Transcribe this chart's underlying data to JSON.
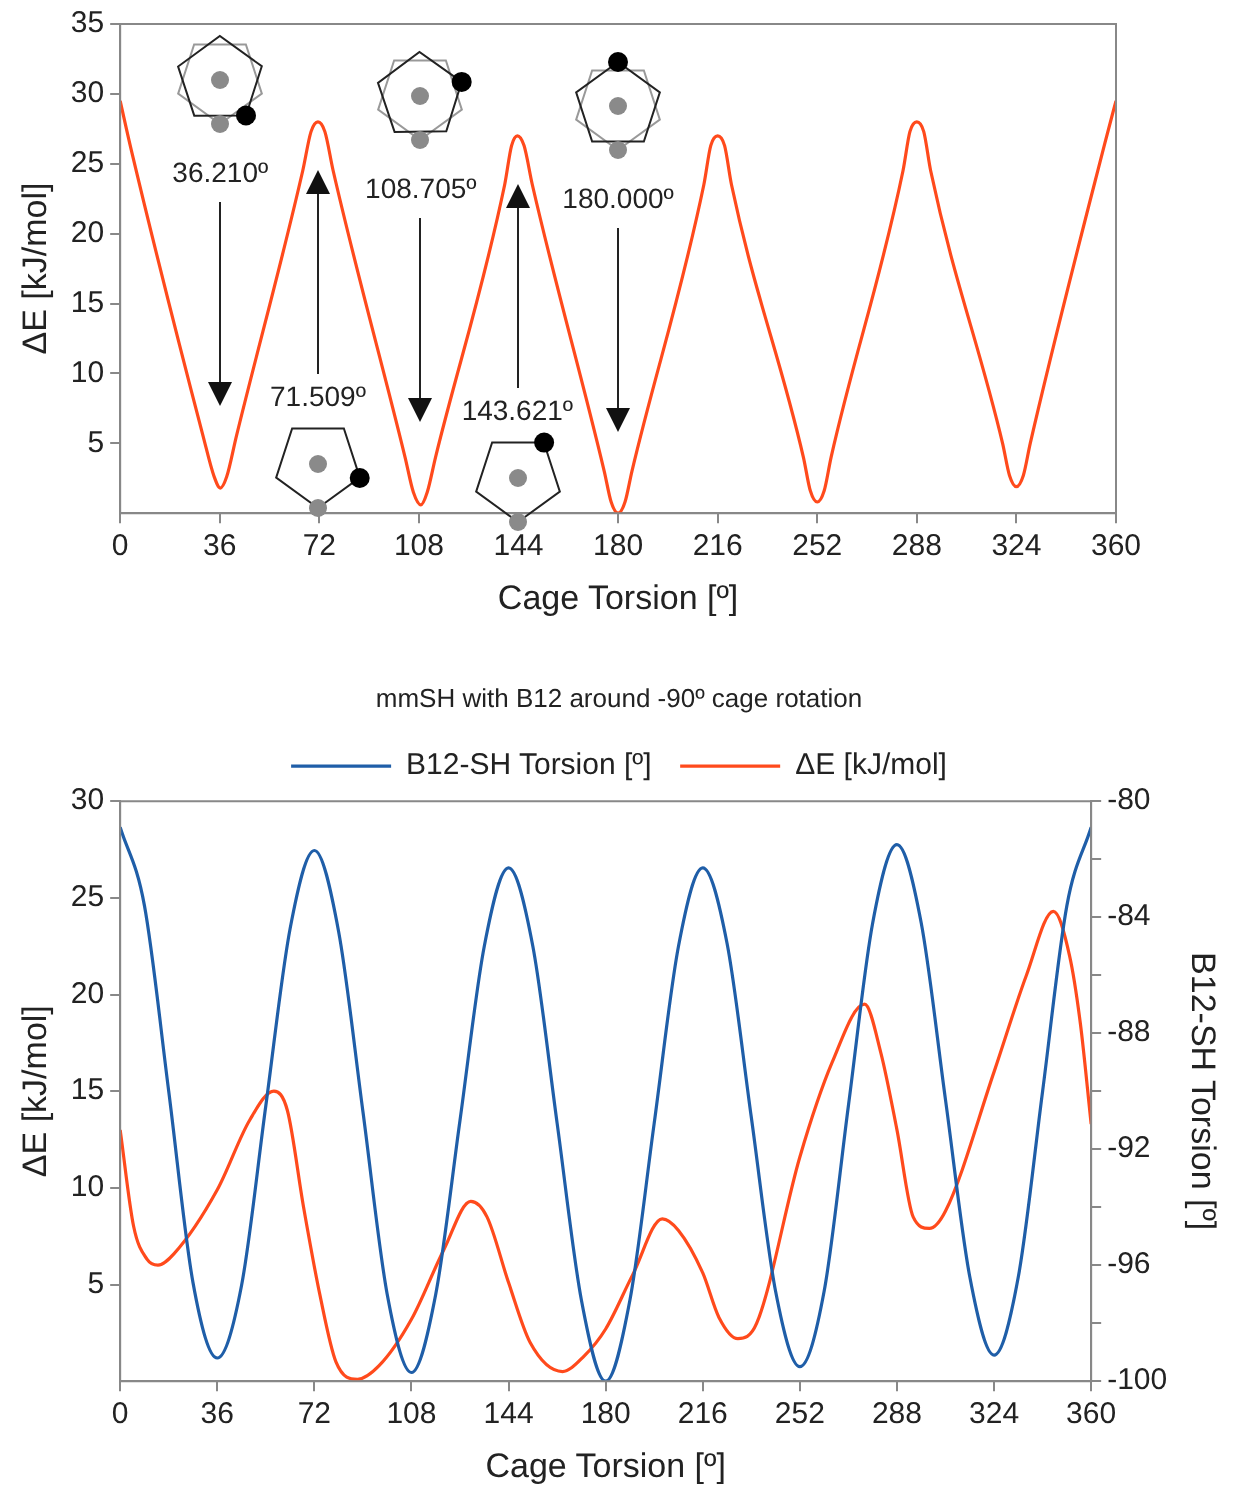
{
  "chart_data": [
    {
      "type": "line",
      "xlabel": "Cage Torsion [º]",
      "ylabel": "ΔE [kJ/mol]",
      "color": "#ff4a1c",
      "marker": "none",
      "x": [
        0,
        4,
        30,
        34,
        36.2,
        38.5,
        42,
        66,
        69,
        71.5,
        74,
        77,
        103,
        106,
        108.7,
        111,
        114,
        139,
        141.5,
        143.6,
        146,
        149,
        175,
        177.5,
        180,
        182.5,
        185,
        211,
        213.5,
        216,
        218.5,
        221,
        247,
        249.5,
        252,
        254.5,
        257,
        283,
        285.5,
        288,
        290.5,
        293,
        319,
        321.5,
        324,
        326.5,
        329,
        356,
        360
      ],
      "values": [
        29.5,
        26,
        5.5,
        2.6,
        1.8,
        2.6,
        5.5,
        24.5,
        27.3,
        28,
        27.3,
        24.5,
        4,
        1.5,
        0.6,
        1.5,
        4,
        23.5,
        26.3,
        27,
        26.3,
        23.5,
        3,
        0.8,
        0,
        0.8,
        3,
        23.5,
        26.3,
        27,
        26.3,
        23.5,
        4,
        1.6,
        0.8,
        1.6,
        4,
        24.5,
        27.3,
        28,
        27.3,
        24.5,
        5,
        2.7,
        1.9,
        2.7,
        5,
        26.5,
        29.5
      ],
      "xlim": [
        0,
        360
      ],
      "xticks": [
        0,
        36,
        72,
        108,
        144,
        180,
        216,
        252,
        288,
        324,
        360
      ],
      "ylim": [
        0,
        35
      ],
      "yticks": [
        5,
        10,
        15,
        20,
        25,
        30,
        35
      ],
      "annotations": [
        "36.210º",
        "71.509º",
        "108.705º",
        "143.621º",
        "180.000º"
      ]
    },
    {
      "type": "line",
      "title": "mmSH with B12 around -90º cage rotation",
      "xlabel": "Cage Torsion [º]",
      "ylabel": "ΔE [kJ/mol]",
      "y2label": "B12-SH Torsion [º]",
      "legend": "top",
      "marker": "none",
      "series": [
        {
          "name": "B12-SH Torsion [º]",
          "color": "#1f5ea8",
          "axis": "y2",
          "x": [
            0,
            9,
            18,
            27,
            36,
            45,
            54,
            63,
            72,
            81,
            90,
            99,
            108,
            117,
            126,
            135,
            144,
            153,
            162,
            171,
            180,
            189,
            198,
            207,
            216,
            225,
            234,
            243,
            252,
            261,
            270,
            279,
            288,
            297,
            306,
            315,
            324,
            333,
            342,
            351,
            360
          ],
          "values": [
            -80.9,
            -83.6,
            -90.0,
            -96.6,
            -99.2,
            -96.7,
            -90.5,
            -84.4,
            -81.7,
            -84.5,
            -90.7,
            -97.0,
            -99.7,
            -97.0,
            -91.0,
            -85.0,
            -82.3,
            -85.0,
            -91.1,
            -97.2,
            -100,
            -97.2,
            -91.1,
            -85.0,
            -82.3,
            -84.9,
            -90.9,
            -96.9,
            -99.5,
            -96.9,
            -90.5,
            -84.2,
            -81.5,
            -84.2,
            -90.3,
            -96.4,
            -99.1,
            -96.4,
            -90.0,
            -83.6,
            -80.9
          ]
        },
        {
          "name": "ΔE [kJ/mol]",
          "color": "#ff4a1c",
          "x": [
            0,
            5,
            10,
            14,
            20,
            36,
            48,
            57,
            62,
            68,
            74,
            80,
            88,
            96,
            108,
            120,
            130,
            136,
            144,
            152,
            164,
            172,
            180,
            190,
            201,
            207,
            216,
            222,
            229,
            236,
            252,
            264,
            276,
            282,
            288,
            294,
            300,
            306,
            324,
            336,
            346,
            352,
            356,
            360
          ],
          "values": [
            13,
            8,
            6.3,
            6,
            6.6,
            9.9,
            13.5,
            15,
            14,
            9,
            4.5,
            1,
            0.1,
            0.8,
            3.2,
            6.8,
            9.3,
            8.5,
            5.1,
            2,
            0.5,
            1.3,
            2.7,
            5.5,
            8.4,
            7.8,
            5.6,
            3.3,
            2.2,
            3,
            11.6,
            16.5,
            19.5,
            17,
            13,
            8.5,
            7.9,
            8.8,
            16,
            21,
            24.3,
            22,
            18.5,
            13.3
          ]
        }
      ],
      "xlim": [
        0,
        360
      ],
      "xticks": [
        0,
        36,
        72,
        108,
        144,
        180,
        216,
        252,
        288,
        324,
        360
      ],
      "ylim": [
        0,
        30
      ],
      "yticks": [
        5,
        10,
        15,
        20,
        25,
        30
      ],
      "y2lim": [
        -100,
        -80
      ],
      "y2ticks": [
        -100,
        {
          "value": -98,
          "label": null
        },
        -96,
        {
          "value": -94,
          "label": null
        },
        -92,
        {
          "value": -90,
          "label": null
        },
        -88,
        {
          "value": -86,
          "label": null
        },
        -84,
        {
          "value": -82,
          "label": null
        },
        -80
      ]
    }
  ]
}
